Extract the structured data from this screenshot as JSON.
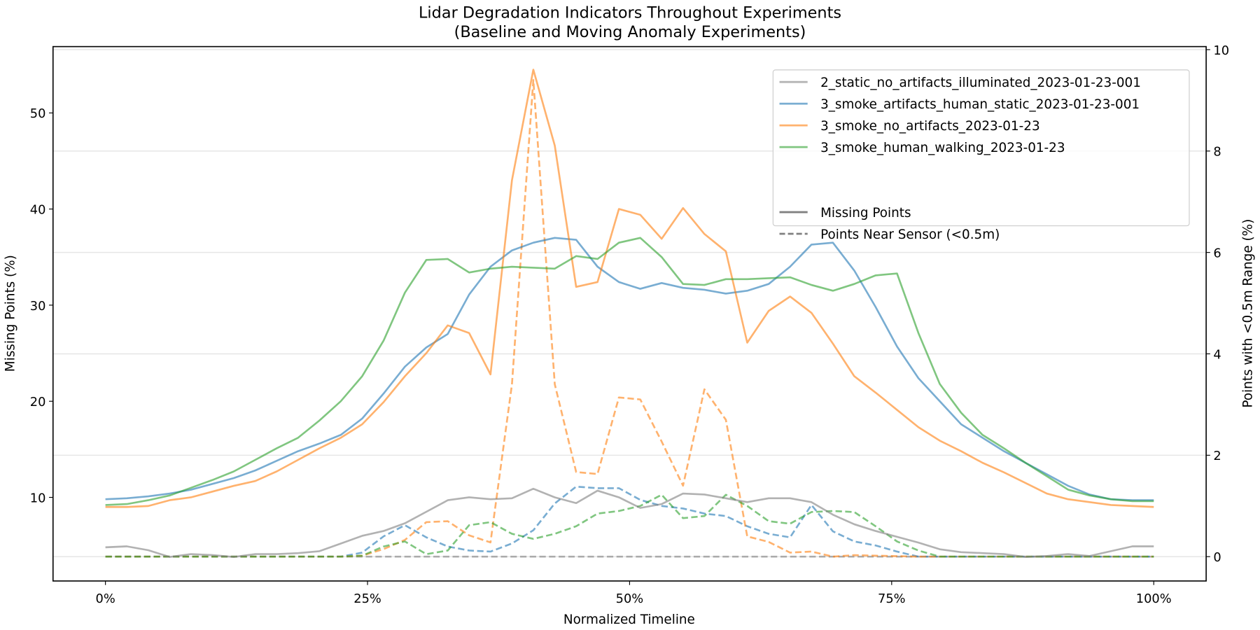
{
  "chart_data": {
    "type": "line",
    "title": "Lidar Degradation Indicators Throughout Experiments",
    "subtitle": "(Baseline and Moving Anomaly Experiments)",
    "xlabel": "Normalized Timeline",
    "ylabel": "Missing Points (%)",
    "ylabel_right": "Points with <0.5m Range (%)",
    "x_ticks": [
      "0%",
      "25%",
      "50%",
      "75%",
      "100%"
    ],
    "x_tick_values": [
      0,
      25,
      50,
      75,
      100
    ],
    "y_ticks": [
      10,
      20,
      30,
      40,
      50
    ],
    "y_ticks_right": [
      0,
      2,
      4,
      6,
      8,
      10
    ],
    "xlim": [
      -5,
      105
    ],
    "ylim": [
      1.3,
      56.9
    ],
    "ylim_right": [
      -0.48,
      10.06
    ],
    "grid": "horizontal, at right-axis ticks",
    "legend_placement": "top-right",
    "x": [
      0,
      2.04,
      4.08,
      6.12,
      8.16,
      10.2,
      12.24,
      14.29,
      16.33,
      18.37,
      20.41,
      22.45,
      24.49,
      26.53,
      28.57,
      30.61,
      32.65,
      34.69,
      36.73,
      38.78,
      40.82,
      42.86,
      44.9,
      46.94,
      48.98,
      51.02,
      53.06,
      55.1,
      57.14,
      59.18,
      61.22,
      63.27,
      65.31,
      67.35,
      69.39,
      71.43,
      73.47,
      75.51,
      77.55,
      79.59,
      81.63,
      83.67,
      85.71,
      87.76,
      89.8,
      91.84,
      93.88,
      95.92,
      97.96,
      100
    ],
    "experiments": [
      {
        "name": "2_static_no_artifacts_illuminated_2023-01-23-001",
        "color": "#7f7f7f"
      },
      {
        "name": "3_smoke_artifacts_human_static_2023-01-23-001",
        "color": "#1f77b4"
      },
      {
        "name": "3_smoke_no_artifacts_2023-01-23",
        "color": "#ff7f0e"
      },
      {
        "name": "3_smoke_human_walking_2023-01-23",
        "color": "#2ca02c"
      }
    ],
    "style_legend": [
      {
        "name": "Missing Points",
        "style": "solid",
        "color": "#808080"
      },
      {
        "name": "Points Near Sensor (<0.5m)",
        "style": "dashed",
        "color": "#808080"
      }
    ],
    "series": [
      {
        "experiment": 0,
        "metric": "Missing Points",
        "axis": "left",
        "style": "solid",
        "values": [
          4.8,
          4.9,
          4.5,
          3.8,
          4.1,
          4.0,
          3.8,
          4.1,
          4.1,
          4.2,
          4.4,
          5.2,
          6.0,
          6.5,
          7.3,
          8.5,
          9.7,
          10.0,
          9.8,
          9.9,
          10.9,
          10.0,
          9.4,
          10.7,
          10.0,
          8.9,
          9.3,
          10.4,
          10.3,
          9.9,
          9.5,
          9.9,
          9.9,
          9.5,
          8.2,
          7.2,
          6.5,
          5.9,
          5.3,
          4.6,
          4.3,
          4.2,
          4.1,
          3.8,
          3.9,
          4.1,
          3.9,
          4.4,
          4.9,
          4.9
        ]
      },
      {
        "experiment": 1,
        "metric": "Missing Points",
        "axis": "left",
        "style": "solid",
        "values": [
          9.8,
          9.9,
          10.1,
          10.4,
          10.8,
          11.4,
          12.0,
          12.8,
          13.8,
          14.8,
          15.6,
          16.5,
          18.2,
          20.8,
          23.6,
          25.6,
          27.0,
          31.1,
          34.0,
          35.7,
          36.5,
          37.0,
          36.8,
          34.0,
          32.4,
          31.7,
          32.3,
          31.8,
          31.6,
          31.2,
          31.5,
          32.2,
          34.0,
          36.3,
          36.5,
          33.6,
          29.8,
          25.7,
          22.4,
          20.0,
          17.6,
          16.2,
          14.8,
          13.6,
          12.4,
          11.2,
          10.3,
          9.8,
          9.7,
          9.7
        ]
      },
      {
        "experiment": 2,
        "metric": "Missing Points",
        "axis": "left",
        "style": "solid",
        "values": [
          9.0,
          9.0,
          9.1,
          9.7,
          10.0,
          10.6,
          11.2,
          11.7,
          12.7,
          13.9,
          15.1,
          16.2,
          17.6,
          19.9,
          22.6,
          25.0,
          27.9,
          27.1,
          22.8,
          43.0,
          54.5,
          46.6,
          31.9,
          32.4,
          40.0,
          39.4,
          36.9,
          40.1,
          37.4,
          35.6,
          26.1,
          29.4,
          30.9,
          29.2,
          26.0,
          22.6,
          20.9,
          19.1,
          17.3,
          15.9,
          14.8,
          13.6,
          12.6,
          11.5,
          10.4,
          9.8,
          9.5,
          9.2,
          9.1,
          9.0
        ]
      },
      {
        "experiment": 3,
        "metric": "Missing Points",
        "axis": "left",
        "style": "solid",
        "values": [
          9.2,
          9.3,
          9.7,
          10.2,
          11.0,
          11.8,
          12.7,
          13.9,
          15.1,
          16.2,
          18.0,
          20.0,
          22.6,
          26.3,
          31.3,
          34.7,
          34.8,
          33.4,
          33.8,
          34.0,
          33.9,
          33.8,
          35.1,
          34.8,
          36.5,
          37.0,
          35.0,
          32.2,
          32.1,
          32.7,
          32.7,
          32.8,
          32.9,
          32.1,
          31.5,
          32.2,
          33.1,
          33.3,
          27.1,
          21.8,
          18.8,
          16.5,
          15.1,
          13.6,
          12.2,
          10.8,
          10.2,
          9.8,
          9.6,
          9.6
        ]
      },
      {
        "experiment": 0,
        "metric": "Points Near Sensor (<0.5m)",
        "axis": "right",
        "style": "dashed",
        "values": [
          0,
          0,
          0,
          0,
          0,
          0,
          0,
          0,
          0,
          0,
          0,
          0,
          0,
          0,
          0,
          0,
          0,
          0,
          0,
          0,
          0,
          0,
          0,
          0,
          0,
          0,
          0,
          0,
          0,
          0,
          0,
          0,
          0,
          0,
          0,
          0,
          0,
          0,
          0,
          0,
          0,
          0,
          0,
          0,
          0,
          0,
          0,
          0,
          0,
          0
        ]
      },
      {
        "experiment": 1,
        "metric": "Points Near Sensor (<0.5m)",
        "axis": "right",
        "style": "dashed",
        "values": [
          0,
          0,
          0,
          0,
          0,
          0,
          0,
          0,
          0,
          0,
          0,
          0,
          0.08,
          0.4,
          0.62,
          0.38,
          0.2,
          0.12,
          0.1,
          0.26,
          0.52,
          1.05,
          1.38,
          1.35,
          1.35,
          1.12,
          1.0,
          0.95,
          0.85,
          0.8,
          0.6,
          0.45,
          0.38,
          1.02,
          0.5,
          0.3,
          0.22,
          0.1,
          0,
          0,
          0,
          0,
          0,
          0,
          0,
          0,
          0,
          0,
          0,
          0
        ]
      },
      {
        "experiment": 2,
        "metric": "Points Near Sensor (<0.5m)",
        "axis": "right",
        "style": "dashed",
        "values": [
          0,
          0,
          0,
          0,
          0,
          0,
          0,
          0,
          0,
          0,
          0,
          0,
          0.02,
          0.15,
          0.33,
          0.68,
          0.7,
          0.42,
          0.28,
          3.4,
          9.4,
          3.4,
          1.67,
          1.63,
          3.14,
          3.1,
          2.27,
          1.4,
          3.3,
          2.7,
          0.4,
          0.29,
          0.08,
          0.1,
          0,
          0.03,
          0.02,
          0.01,
          0,
          0,
          0,
          0,
          0,
          0,
          0,
          0,
          0,
          0,
          0,
          0
        ]
      },
      {
        "experiment": 3,
        "metric": "Points Near Sensor (<0.5m)",
        "axis": "right",
        "style": "dashed",
        "values": [
          0,
          0,
          0,
          0,
          0,
          0,
          0,
          0,
          0,
          0,
          0,
          0,
          0.02,
          0.2,
          0.3,
          0.05,
          0.12,
          0.62,
          0.68,
          0.45,
          0.35,
          0.45,
          0.6,
          0.85,
          0.9,
          1.0,
          1.22,
          0.76,
          0.8,
          1.22,
          1.0,
          0.7,
          0.65,
          0.88,
          0.9,
          0.88,
          0.6,
          0.3,
          0.12,
          0,
          0,
          0,
          0,
          0,
          0,
          0,
          0,
          0,
          0,
          0
        ]
      }
    ]
  }
}
